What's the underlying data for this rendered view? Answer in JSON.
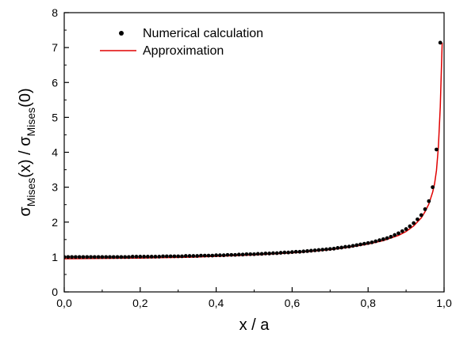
{
  "chart_data": {
    "type": "line",
    "xlabel": "x / a",
    "ylabel": {
      "sigma1": "σ",
      "sub1": "Mises",
      "mid": "(x) / ",
      "sigma2": "σ",
      "sub2": "Mises",
      "end": "(0)"
    },
    "xlim": [
      0.0,
      1.0
    ],
    "ylim": [
      0,
      8
    ],
    "x_ticks": [
      "0,0",
      "0,2",
      "0,4",
      "0,6",
      "0,8",
      "1,0"
    ],
    "y_ticks": [
      "0",
      "1",
      "2",
      "3",
      "4",
      "5",
      "6",
      "7",
      "8"
    ],
    "grid": false,
    "legend_position": "top-left",
    "series": [
      {
        "name": "Numerical calculation",
        "style": "markers",
        "color": "#000000",
        "x": [
          0.0,
          0.01,
          0.02,
          0.03,
          0.04,
          0.05,
          0.06,
          0.07,
          0.08,
          0.09,
          0.1,
          0.11,
          0.12,
          0.13,
          0.14,
          0.15,
          0.16,
          0.17,
          0.18,
          0.19,
          0.2,
          0.21,
          0.22,
          0.23,
          0.24,
          0.25,
          0.26,
          0.27,
          0.28,
          0.29,
          0.3,
          0.31,
          0.32,
          0.33,
          0.34,
          0.35,
          0.36,
          0.37,
          0.38,
          0.39,
          0.4,
          0.41,
          0.42,
          0.43,
          0.44,
          0.45,
          0.46,
          0.47,
          0.48,
          0.49,
          0.5,
          0.51,
          0.52,
          0.53,
          0.54,
          0.55,
          0.56,
          0.57,
          0.58,
          0.59,
          0.6,
          0.61,
          0.62,
          0.63,
          0.64,
          0.65,
          0.66,
          0.67,
          0.68,
          0.69,
          0.7,
          0.71,
          0.72,
          0.73,
          0.74,
          0.75,
          0.76,
          0.77,
          0.78,
          0.79,
          0.8,
          0.81,
          0.82,
          0.83,
          0.84,
          0.85,
          0.86,
          0.87,
          0.88,
          0.89,
          0.9,
          0.91,
          0.92,
          0.93,
          0.94,
          0.95,
          0.96,
          0.97,
          0.98,
          0.99
        ],
        "y": [
          1.0,
          1.0,
          1.0,
          1.0,
          1.0,
          1.0,
          1.0,
          1.0,
          1.0,
          1.0,
          1.0,
          1.0,
          1.0,
          1.0,
          1.0,
          1.0,
          1.0,
          1.0,
          1.01,
          1.01,
          1.01,
          1.01,
          1.01,
          1.01,
          1.01,
          1.01,
          1.02,
          1.02,
          1.02,
          1.02,
          1.02,
          1.02,
          1.03,
          1.03,
          1.03,
          1.03,
          1.04,
          1.04,
          1.04,
          1.04,
          1.05,
          1.05,
          1.05,
          1.06,
          1.06,
          1.06,
          1.07,
          1.07,
          1.08,
          1.08,
          1.08,
          1.09,
          1.09,
          1.1,
          1.1,
          1.11,
          1.11,
          1.12,
          1.13,
          1.13,
          1.14,
          1.15,
          1.15,
          1.16,
          1.17,
          1.18,
          1.19,
          1.2,
          1.21,
          1.22,
          1.23,
          1.24,
          1.26,
          1.27,
          1.29,
          1.3,
          1.32,
          1.34,
          1.36,
          1.38,
          1.4,
          1.42,
          1.45,
          1.48,
          1.51,
          1.54,
          1.58,
          1.63,
          1.68,
          1.74,
          1.8,
          1.88,
          1.97,
          2.08,
          2.2,
          2.37,
          2.6,
          3.0,
          4.08,
          7.14
        ]
      },
      {
        "name": "Approximation",
        "style": "line",
        "color": "#e00000",
        "x": [
          0.0,
          0.05,
          0.1,
          0.15,
          0.2,
          0.25,
          0.3,
          0.35,
          0.4,
          0.45,
          0.5,
          0.55,
          0.6,
          0.65,
          0.7,
          0.75,
          0.8,
          0.84,
          0.88,
          0.9,
          0.92,
          0.94,
          0.95,
          0.96,
          0.97,
          0.975,
          0.98,
          0.985,
          0.99,
          0.995
        ],
        "y": [
          0.95,
          0.955,
          0.96,
          0.965,
          0.97,
          0.98,
          0.99,
          1.0,
          1.02,
          1.04,
          1.06,
          1.09,
          1.12,
          1.16,
          1.21,
          1.28,
          1.37,
          1.47,
          1.62,
          1.73,
          1.89,
          2.12,
          2.3,
          2.52,
          2.86,
          3.1,
          3.48,
          4.15,
          5.3,
          7.14
        ]
      }
    ]
  }
}
